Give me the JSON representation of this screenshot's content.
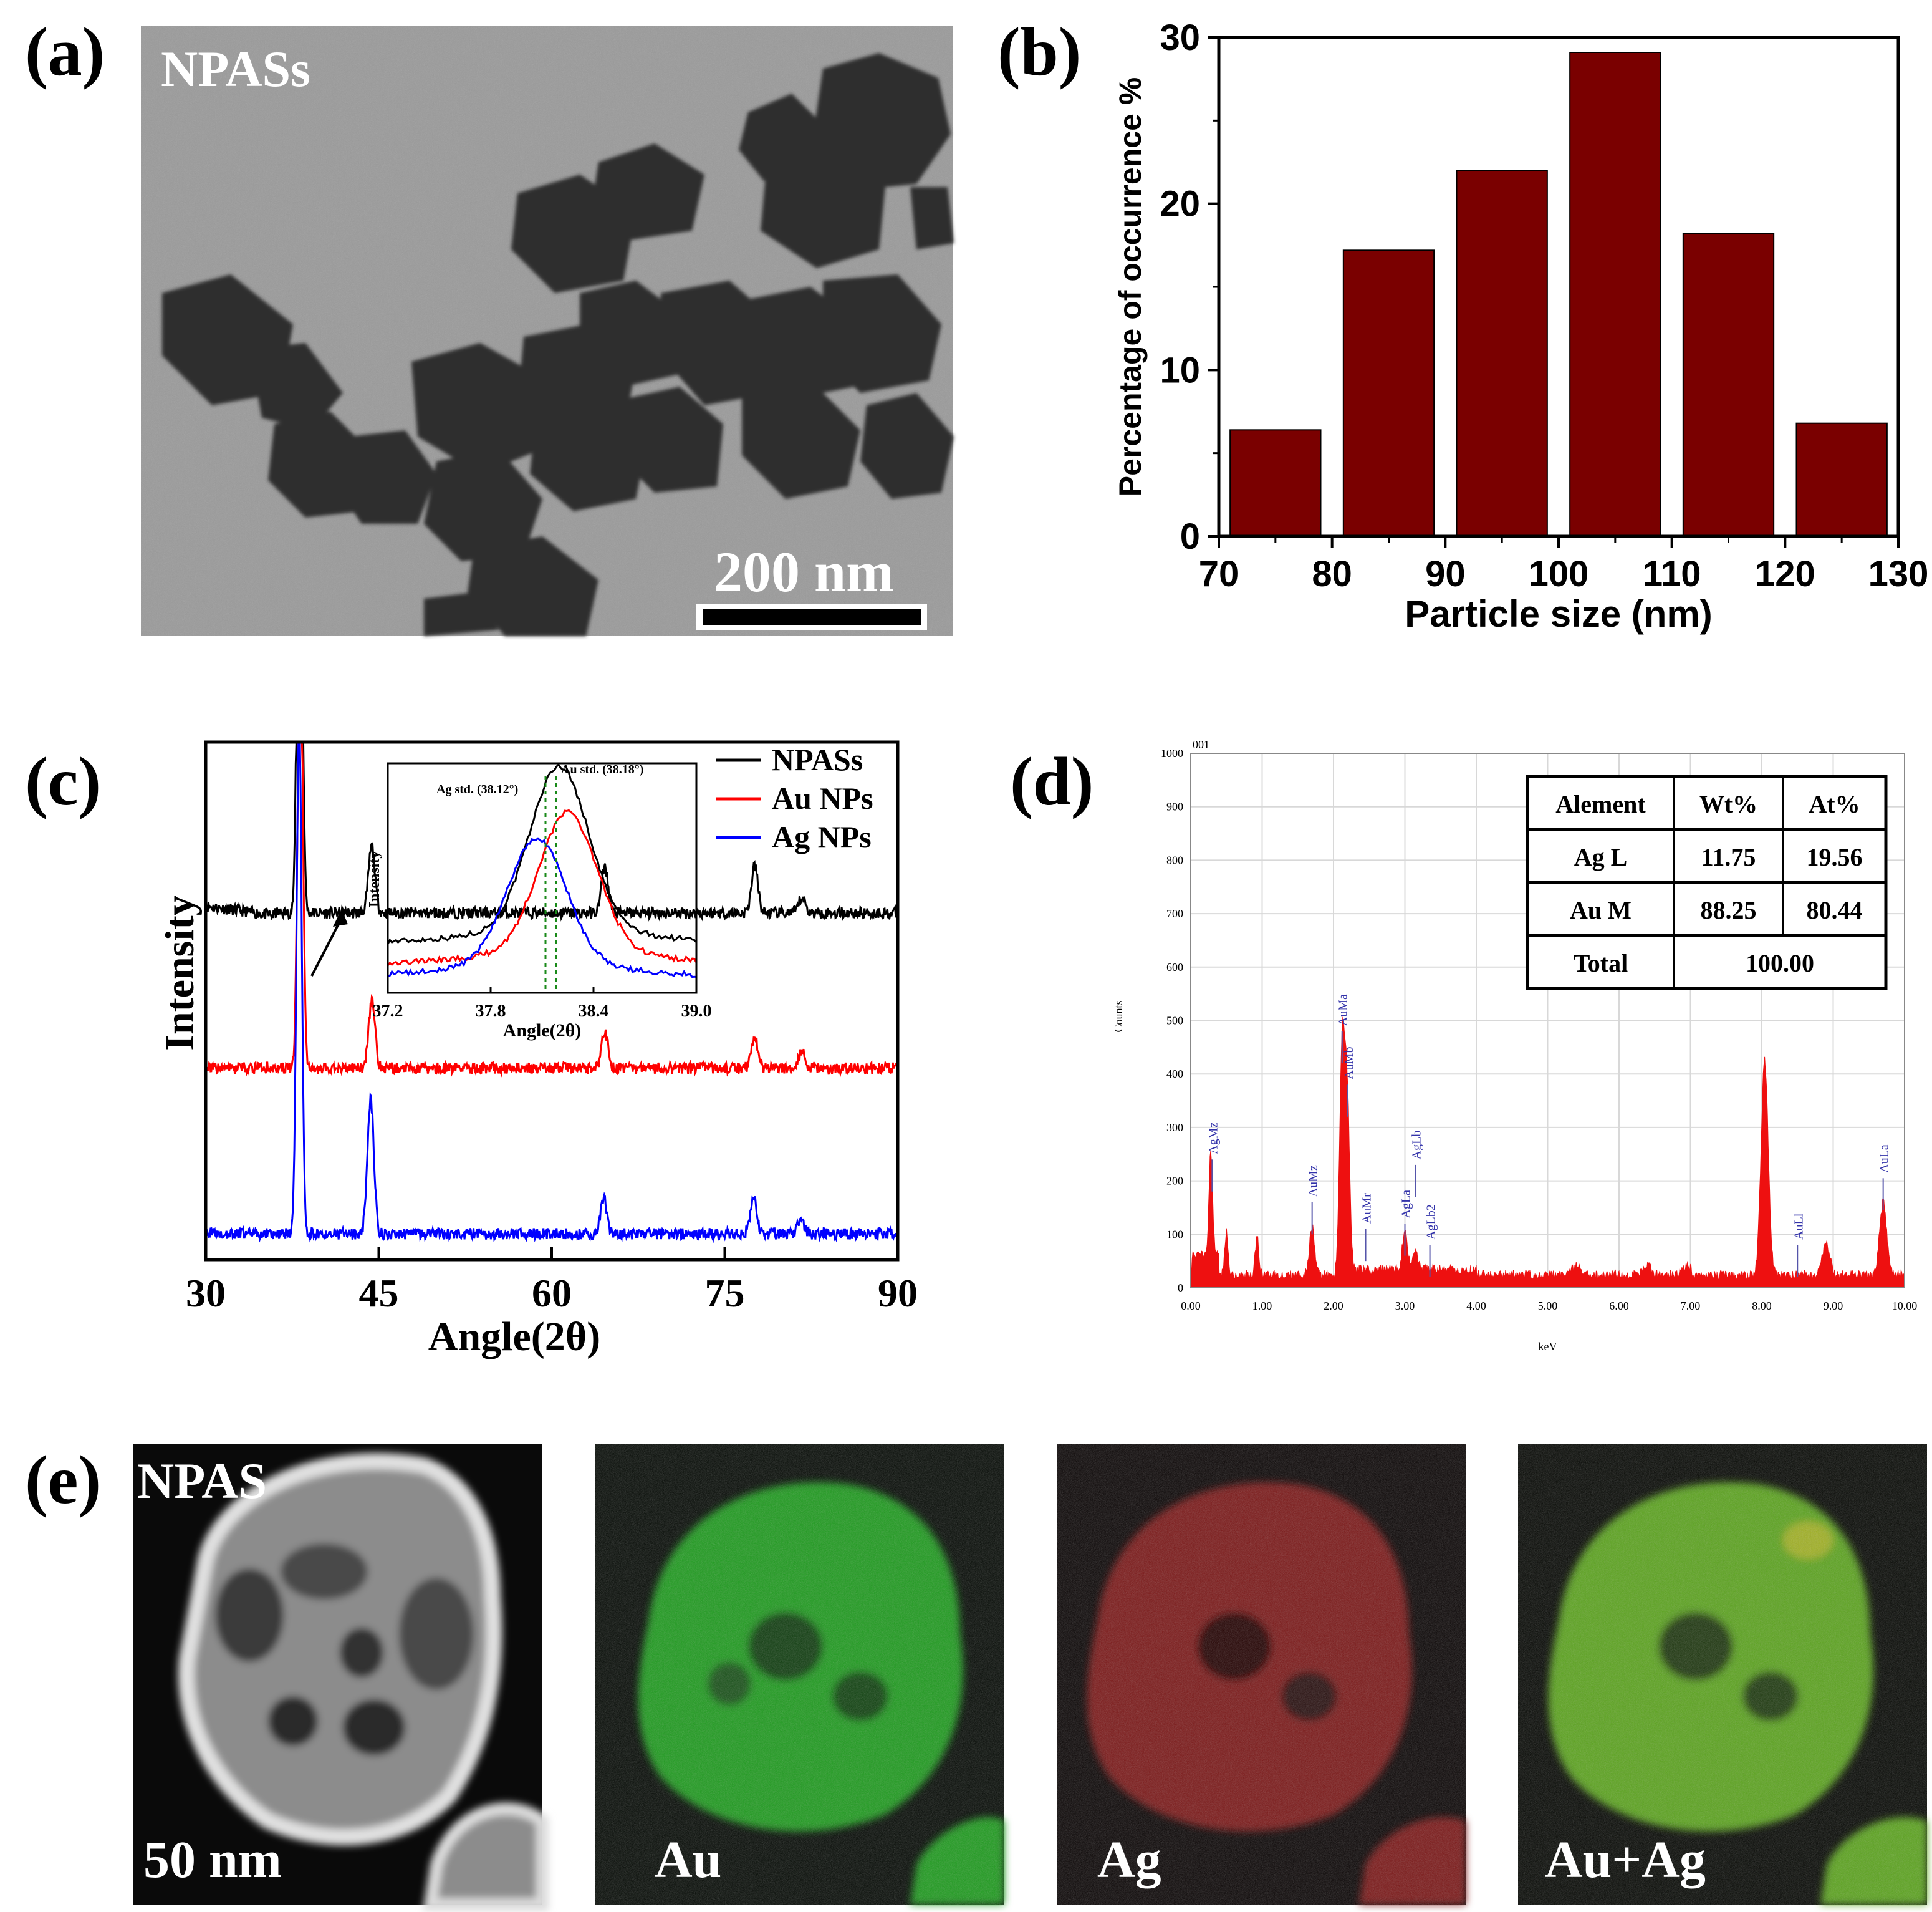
{
  "panel_labels": {
    "a": "(a)",
    "b": "(b)",
    "c": "(c)",
    "d": "(d)",
    "e": "(e)"
  },
  "panel_a": {
    "label": "NPASs",
    "scale_bar": "200 nm"
  },
  "colors": {
    "bar": "#7a0000",
    "black": "#000000",
    "red": "#ff0000",
    "blue": "#0000ff",
    "eds": "#ee1010",
    "eds_label": "#3333aa",
    "green": "#22c022"
  },
  "chart_data": [
    {
      "id": "b",
      "type": "bar",
      "xlabel": "Particle size (nm)",
      "ylabel": "Percentage of occurrence %",
      "xlim": [
        70,
        130
      ],
      "ylim": [
        0,
        30
      ],
      "x_ticks": [
        70,
        80,
        90,
        100,
        110,
        120,
        130
      ],
      "y_ticks": [
        0,
        10,
        20,
        30
      ],
      "bins": [
        [
          71,
          79
        ],
        [
          81,
          89
        ],
        [
          91,
          99
        ],
        [
          101,
          109
        ],
        [
          111,
          119
        ],
        [
          121,
          129
        ]
      ],
      "values": [
        6.4,
        17.2,
        22.0,
        29.1,
        18.2,
        6.8
      ]
    },
    {
      "id": "c",
      "type": "line",
      "xlabel": "Angle(2θ)",
      "ylabel": "Intensity",
      "xlim": [
        30,
        90
      ],
      "x_ticks": [
        30,
        45,
        60,
        75,
        90
      ],
      "series": [
        {
          "name": "NPASs",
          "color": "#000000",
          "offset": 0.64,
          "peaks": [
            [
              38.15,
              1.0
            ],
            [
              44.4,
              0.13
            ],
            [
              64.6,
              0.09
            ],
            [
              77.6,
              0.09
            ],
            [
              81.7,
              0.03
            ]
          ]
        },
        {
          "name": "Au NPs",
          "color": "#ff0000",
          "offset": 0.34,
          "peaks": [
            [
              38.2,
              0.88
            ],
            [
              44.4,
              0.13
            ],
            [
              64.6,
              0.07
            ],
            [
              77.6,
              0.06
            ],
            [
              81.7,
              0.03
            ]
          ]
        },
        {
          "name": "Ag NPs",
          "color": "#0000ff",
          "offset": 0.02,
          "peaks": [
            [
              38.1,
              1.0
            ],
            [
              44.3,
              0.26
            ],
            [
              64.5,
              0.07
            ],
            [
              77.5,
              0.07
            ],
            [
              81.6,
              0.03
            ]
          ]
        }
      ],
      "inset": {
        "xlabel": "Angle(2θ)",
        "ylabel": "Intensity",
        "xlim": [
          37.2,
          39.0
        ],
        "x_ticks": [
          "37.2",
          "37.8",
          "38.4",
          "39.0"
        ],
        "ag_std_label": "Ag std. (38.12°)",
        "au_std_label": "Au std. (38.18°)",
        "ag_std": 38.12,
        "au_std": 38.18,
        "curves": [
          {
            "name": "NPASs",
            "color": "#000000",
            "center": 38.2,
            "height": 0.78,
            "base": 0.16
          },
          {
            "name": "Au NPs",
            "color": "#ff0000",
            "center": 38.25,
            "height": 0.66,
            "base": 0.06
          },
          {
            "name": "Ag NPs",
            "color": "#0000ff",
            "center": 38.07,
            "height": 0.6,
            "base": 0.0
          }
        ]
      }
    },
    {
      "id": "d",
      "type": "line",
      "xlabel": "keV",
      "ylabel": "Counts",
      "corner": "001",
      "xlim": [
        0,
        10
      ],
      "ylim": [
        0,
        1000
      ],
      "x_ticks": [
        "0.00",
        "1.00",
        "2.00",
        "3.00",
        "4.00",
        "5.00",
        "6.00",
        "7.00",
        "8.00",
        "9.00",
        "10.00"
      ],
      "y_ticks": [
        "0",
        "100",
        "200",
        "300",
        "400",
        "500",
        "600",
        "700",
        "800",
        "900",
        "1000"
      ],
      "peaks": [
        [
          0.28,
          190
        ],
        [
          0.5,
          80
        ],
        [
          0.93,
          70
        ],
        [
          1.7,
          90
        ],
        [
          2.12,
          420
        ],
        [
          2.19,
          330
        ],
        [
          3.0,
          75
        ],
        [
          3.15,
          30
        ],
        [
          5.4,
          18
        ],
        [
          6.4,
          18
        ],
        [
          6.95,
          18
        ],
        [
          8.04,
          400
        ],
        [
          8.9,
          60
        ],
        [
          9.7,
          135
        ]
      ],
      "peak_labels": [
        "AgMz",
        "AuMz",
        "AuMa",
        "AuMb",
        "AuMr",
        "AgLa",
        "AgLb",
        "AgLb2",
        "AuLl",
        "AuLa"
      ],
      "table": {
        "headers": [
          "Alement",
          "Wt%",
          "At%"
        ],
        "rows": [
          [
            "Ag L",
            "11.75",
            "19.56"
          ],
          [
            "Au M",
            "88.25",
            "80.44"
          ],
          [
            "Total",
            "100.00",
            ""
          ]
        ]
      }
    }
  ],
  "panel_e": {
    "labels": [
      "NPAS",
      "Au",
      "Ag",
      "Au+Ag"
    ],
    "scale": "50 nm"
  }
}
